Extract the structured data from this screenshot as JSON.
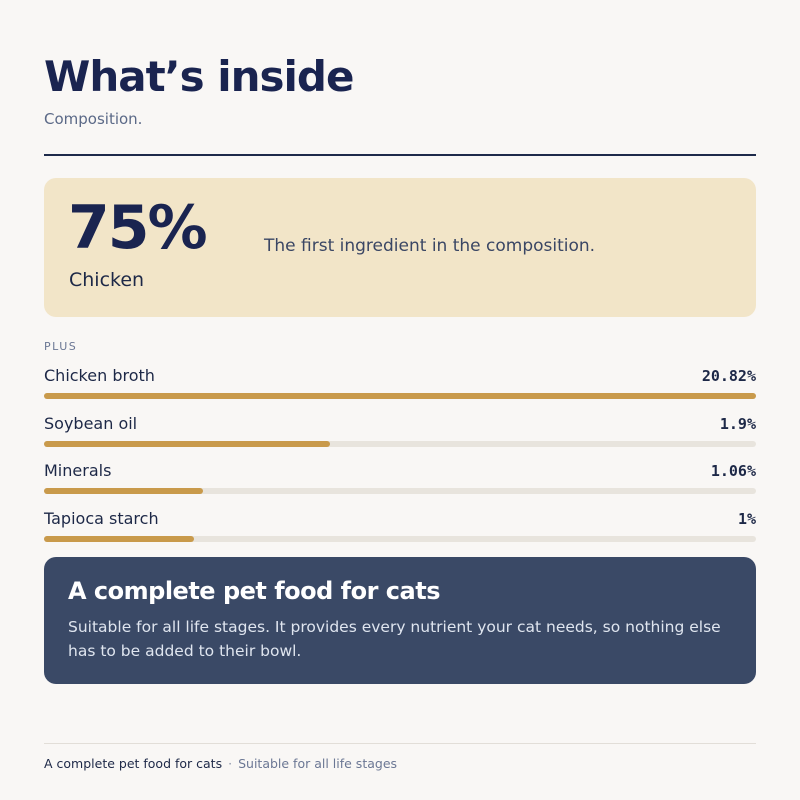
{
  "header": {
    "title": "What’s inside",
    "subtitle": "Composition."
  },
  "hero": {
    "percent": "75%",
    "ingredient": "Chicken",
    "description": "The first ingredient in the composition."
  },
  "plus": {
    "label": "PLUS",
    "items": [
      {
        "name": "Chicken broth",
        "value_label": "20.82%",
        "value": 20.82
      },
      {
        "name": "Soybean oil",
        "value_label": "1.9%",
        "value": 1.9
      },
      {
        "name": "Minerals",
        "value_label": "1.06%",
        "value": 1.06
      },
      {
        "name": "Tapioca starch",
        "value_label": "1%",
        "value": 1
      }
    ]
  },
  "callout": {
    "title": "A complete pet food for cats",
    "text": "Suitable for all life stages. It provides every nutrient your cat needs, so nothing else has to be added to their bowl."
  },
  "footer": {
    "main": "A complete pet food for cats",
    "separator": "·",
    "sub": "Suitable for all life stages"
  },
  "colors": {
    "accent": "#c99a4b",
    "navy": "#1a2450",
    "hero_bg": "#f2e5c8",
    "callout_bg": "#3a4966",
    "track": "#e8e4dd"
  }
}
